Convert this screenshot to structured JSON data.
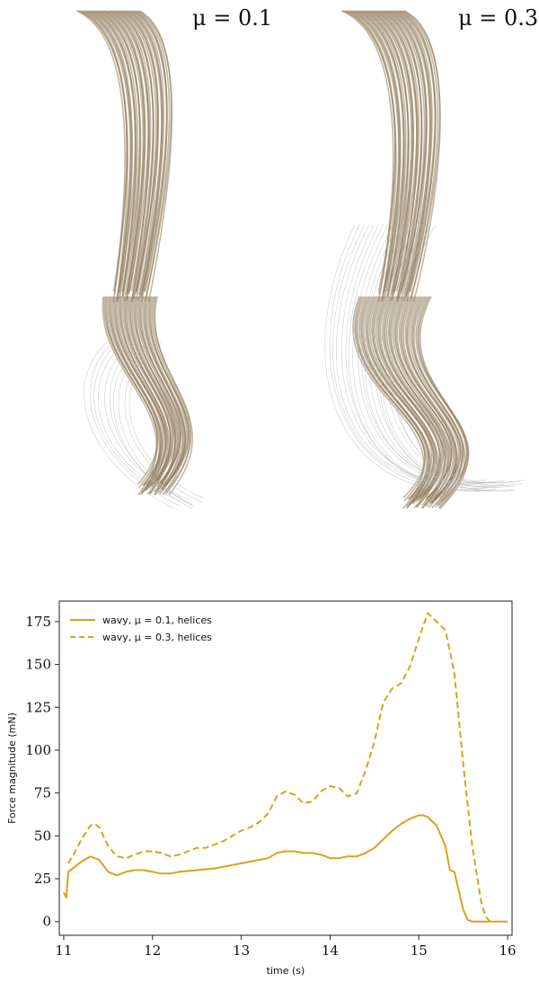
{
  "panels": [
    {
      "mu_label": "μ = 0.1"
    },
    {
      "mu_label": "μ = 0.3"
    }
  ],
  "hair_color": "#8f7a5a",
  "stray_color": "#b9b9b9",
  "chart_data": {
    "type": "line",
    "title": "",
    "xlabel": "time (s)",
    "ylabel": "Force magnitude (mN)",
    "xlim": [
      10.95,
      16.05
    ],
    "ylim": [
      -8,
      187
    ],
    "xticks": [
      11,
      12,
      13,
      14,
      15,
      16
    ],
    "yticks": [
      0,
      25,
      50,
      75,
      100,
      125,
      150,
      175
    ],
    "grid": false,
    "legend_position": "top-left",
    "series": [
      {
        "name": "wavy, μ = 0.1, helices",
        "color": "#d9a21b",
        "dash": "solid",
        "x": [
          11.0,
          11.03,
          11.05,
          11.08,
          11.1,
          11.2,
          11.3,
          11.4,
          11.5,
          11.6,
          11.7,
          11.8,
          11.9,
          12.0,
          12.1,
          12.2,
          12.3,
          12.5,
          12.7,
          12.9,
          13.1,
          13.3,
          13.4,
          13.5,
          13.6,
          13.7,
          13.8,
          13.9,
          14.0,
          14.1,
          14.2,
          14.3,
          14.4,
          14.5,
          14.6,
          14.7,
          14.8,
          14.9,
          15.0,
          15.05,
          15.1,
          15.2,
          15.3,
          15.35,
          15.4,
          15.45,
          15.5,
          15.55,
          15.6,
          16.0
        ],
        "y": [
          17,
          14,
          29,
          30,
          31,
          35,
          38,
          36,
          29,
          27,
          29,
          30,
          30,
          29,
          28,
          28,
          29,
          30,
          31,
          33,
          35,
          37,
          40,
          41,
          41,
          40,
          40,
          39,
          37,
          37,
          38,
          38,
          40,
          43,
          48,
          53,
          57,
          60,
          62,
          62,
          61,
          56,
          44,
          30,
          29,
          18,
          7,
          1,
          0,
          0
        ]
      },
      {
        "name": "wavy, μ = 0.3, helices",
        "color": "#d9a21b",
        "dash": "dashed",
        "x": [
          11.05,
          11.1,
          11.2,
          11.3,
          11.35,
          11.4,
          11.5,
          11.6,
          11.7,
          11.8,
          11.9,
          12.0,
          12.1,
          12.2,
          12.3,
          12.4,
          12.5,
          12.6,
          12.7,
          12.8,
          12.9,
          13.0,
          13.1,
          13.2,
          13.3,
          13.4,
          13.5,
          13.6,
          13.7,
          13.8,
          13.9,
          14.0,
          14.1,
          14.2,
          14.3,
          14.4,
          14.5,
          14.6,
          14.7,
          14.8,
          14.9,
          15.0,
          15.1,
          15.2,
          15.3,
          15.4,
          15.5,
          15.6,
          15.7,
          15.75,
          15.8
        ],
        "y": [
          34,
          38,
          48,
          56,
          57,
          55,
          44,
          38,
          37,
          39,
          41,
          41,
          40,
          38,
          39,
          41,
          43,
          43,
          45,
          47,
          50,
          53,
          55,
          58,
          63,
          73,
          76,
          74,
          69,
          70,
          76,
          79,
          78,
          73,
          75,
          88,
          105,
          128,
          136,
          139,
          149,
          165,
          180,
          175,
          170,
          145,
          92,
          45,
          12,
          3,
          0
        ]
      }
    ]
  }
}
